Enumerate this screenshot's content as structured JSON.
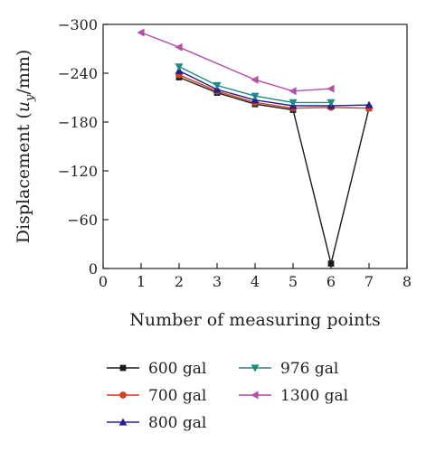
{
  "chart_data": {
    "type": "line",
    "xlabel": "Number of measuring points",
    "ylabel": "Displacement (u_y/mm)",
    "ylabel_parts": {
      "pre": "Displacement (",
      "var": "u",
      "sub": "y",
      "post": "/mm)"
    },
    "xlim": [
      0,
      8
    ],
    "ylim": [
      0,
      -300
    ],
    "y_reversed": true,
    "grid": false,
    "xticks": [
      "0",
      "1",
      "2",
      "3",
      "4",
      "5",
      "6",
      "7",
      "8"
    ],
    "yticks": [
      "0",
      "−60",
      "−120",
      "−180",
      "−240",
      "−300"
    ],
    "legend_position": "bottom",
    "series": [
      {
        "name": "600 gal",
        "color": "#1a1a1a",
        "marker": "square",
        "x": [
          2,
          3,
          4,
          5,
          6,
          7
        ],
        "y": [
          -235,
          -216,
          -202,
          -195,
          -6,
          -197
        ]
      },
      {
        "name": "700 gal",
        "color": "#d43f1e",
        "marker": "circle",
        "x": [
          2,
          3,
          4,
          5,
          6,
          7
        ],
        "y": [
          -238,
          -218,
          -204,
          -197,
          -198,
          -197
        ]
      },
      {
        "name": "800 gal",
        "color": "#24208c",
        "marker": "triangle-up",
        "x": [
          2,
          3,
          4,
          5,
          6,
          7
        ],
        "y": [
          -243,
          -220,
          -207,
          -200,
          -200,
          -201
        ]
      },
      {
        "name": "976 gal",
        "color": "#1e8a80",
        "marker": "triangle-down",
        "x": [
          2,
          3,
          4,
          5,
          6
        ],
        "y": [
          -248,
          -225,
          -212,
          -204,
          -204
        ]
      },
      {
        "name": "1300 gal",
        "color": "#b44ea8",
        "marker": "triangle-left",
        "x": [
          1,
          2,
          4,
          5,
          6
        ],
        "y": [
          -290,
          -272,
          -232,
          -218,
          -221
        ]
      }
    ]
  }
}
